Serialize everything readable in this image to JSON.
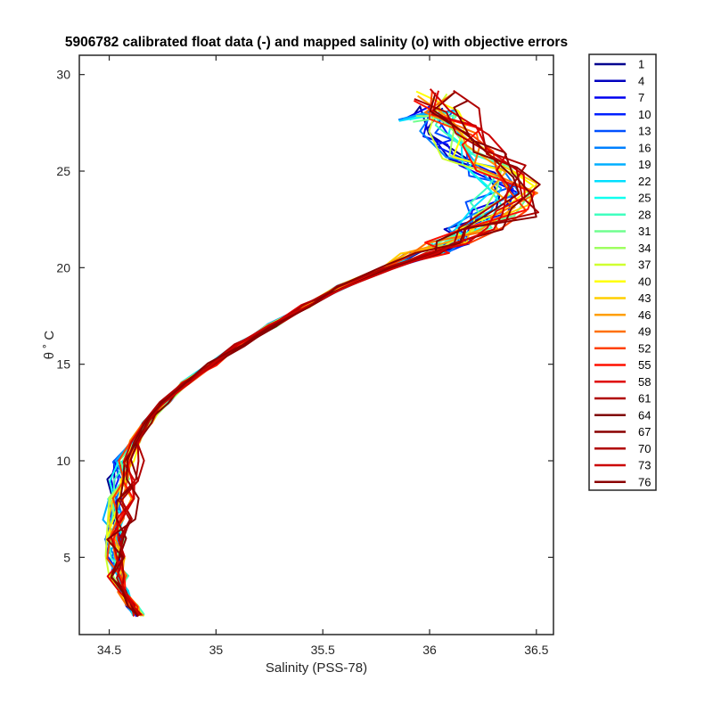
{
  "chart_data": {
    "type": "line",
    "title": "5906782 calibrated float data (-) and mapped salinity (o) with objective errors",
    "xlabel": "Salinity (PSS-78)",
    "ylabel": "θ ˚ C",
    "xlim": [
      34.36,
      36.58
    ],
    "ylim": [
      1,
      31
    ],
    "x_ticks": [
      34.5,
      35,
      35.5,
      36,
      36.5
    ],
    "x_tick_labels": [
      "34.5",
      "35",
      "35.5",
      "36",
      "36.5"
    ],
    "y_ticks": [
      5,
      10,
      15,
      20,
      25,
      30
    ],
    "y_tick_labels": [
      "5",
      "10",
      "15",
      "20",
      "25",
      "30"
    ],
    "grid": false,
    "legend_position": "outside-right",
    "legend_entries": [
      "1",
      "4",
      "7",
      "10",
      "13",
      "16",
      "19",
      "22",
      "25",
      "28",
      "31",
      "34",
      "37",
      "40",
      "43",
      "46",
      "49",
      "52",
      "55",
      "58",
      "61",
      "64",
      "67",
      "70",
      "73",
      "76"
    ],
    "legend_colors": [
      "#00008f",
      "#0000bf",
      "#0000ef",
      "#0020ff",
      "#0050ff",
      "#0080ff",
      "#00afff",
      "#00dfff",
      "#10ffef",
      "#40ffbf",
      "#70ff8f",
      "#9fff60",
      "#cfff30",
      "#ffff00",
      "#ffcf00",
      "#ff9f00",
      "#ff7000",
      "#ff4000",
      "#ff1000",
      "#df0000",
      "#af0000",
      "#800000",
      "#8a0000",
      "#b00000",
      "#cc0000",
      "#8b0000"
    ],
    "series_profile": {
      "theta": [
        2.0,
        2.5,
        3.2,
        4.0,
        5.0,
        6.0,
        7.0,
        8.0,
        9.0,
        10.0,
        11.0,
        12.0,
        13.0,
        14.0,
        15.0,
        16.0,
        17.0,
        18.0,
        19.0,
        20.0,
        20.8,
        21.3,
        22.0,
        23.0,
        24.0,
        25.0,
        26.0,
        27.0,
        28.0,
        29.0
      ],
      "salinity_mean": [
        34.64,
        34.61,
        34.57,
        34.54,
        34.53,
        34.53,
        34.54,
        34.55,
        34.56,
        34.58,
        34.62,
        34.68,
        34.76,
        34.86,
        34.98,
        35.11,
        35.26,
        35.42,
        35.59,
        35.8,
        35.98,
        36.08,
        36.2,
        36.33,
        36.38,
        36.3,
        36.18,
        36.1,
        36.05,
        36.0
      ]
    }
  }
}
